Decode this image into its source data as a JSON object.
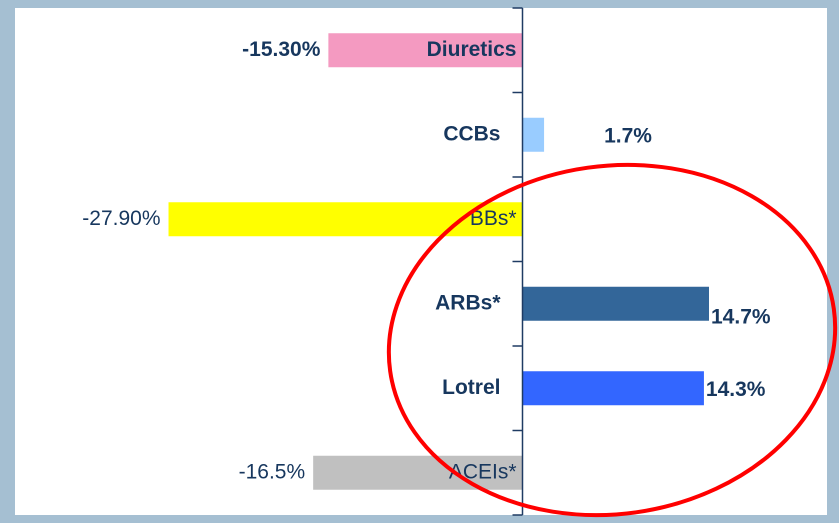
{
  "chart_data": {
    "type": "hbar",
    "categories": [
      "Diuretics",
      "CCBs",
      "BBs*",
      "ARBs*",
      "Lotrel",
      "ACEIs*"
    ],
    "values": [
      -15.3,
      1.7,
      -27.9,
      14.7,
      14.3,
      -16.5
    ],
    "value_labels": [
      "-15.30%",
      "1.7%",
      "-27.90%",
      "14.7%",
      "14.3%",
      "-16.5%"
    ],
    "colors": [
      "#f49ac1",
      "#99ccff",
      "#ffff00",
      "#336699",
      "#3366ff",
      "#c0c0c0"
    ],
    "xlim": [
      -40,
      24
    ]
  }
}
